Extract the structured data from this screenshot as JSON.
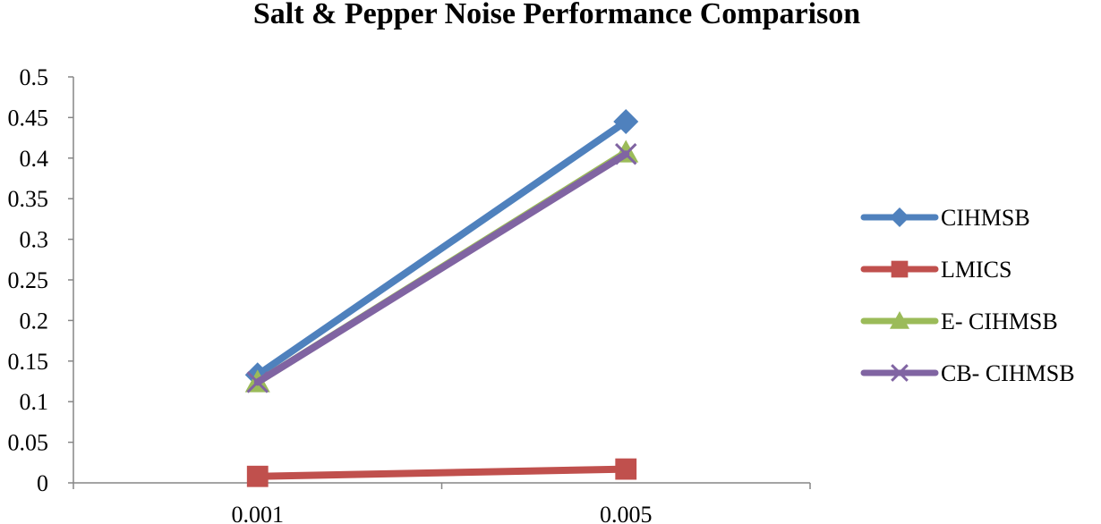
{
  "chart_data": {
    "type": "line",
    "title": "Salt & Pepper Noise Performance Comparison",
    "xlabel": "",
    "ylabel": "",
    "categories": [
      "0.001",
      "0.005"
    ],
    "ylim": [
      0,
      0.5
    ],
    "yticks": [
      "0",
      "0.05",
      "0.1",
      "0.15",
      "0.2",
      "0.25",
      "0.3",
      "0.35",
      "0.4",
      "0.45",
      "0.5"
    ],
    "grid": false,
    "legend_position": "right",
    "series": [
      {
        "name": "CIHMSB",
        "values": [
          0.133,
          0.445
        ],
        "color": "#4f81bd",
        "marker": "diamond"
      },
      {
        "name": "LMICS",
        "values": [
          0.008,
          0.017
        ],
        "color": "#c0504d",
        "marker": "square"
      },
      {
        "name": "E- CIHMSB",
        "values": [
          0.124,
          0.407
        ],
        "color": "#9bbb59",
        "marker": "triangle"
      },
      {
        "name": "CB- CIHMSB",
        "values": [
          0.124,
          0.405
        ],
        "color": "#8064a2",
        "marker": "x"
      }
    ]
  }
}
